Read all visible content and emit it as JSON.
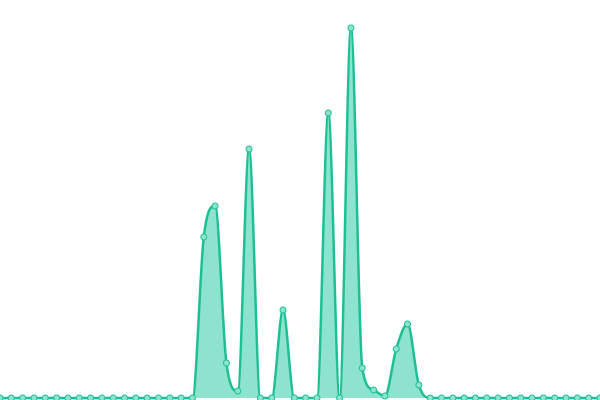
{
  "chart_data": {
    "type": "area",
    "categories": [
      null,
      null,
      null,
      null,
      null,
      null,
      null,
      null,
      null,
      null,
      null,
      null,
      null,
      null,
      null,
      null,
      null,
      null,
      null,
      null,
      null,
      null,
      null,
      null,
      null,
      null,
      null,
      null,
      null,
      null,
      null,
      null,
      null,
      null,
      null,
      null,
      null,
      null,
      null,
      null,
      null,
      null,
      null,
      null,
      null,
      null,
      null,
      null,
      null,
      null,
      null,
      null,
      null,
      null
    ],
    "values": [
      0,
      0,
      0,
      0,
      0,
      0,
      0,
      0,
      0,
      0,
      0,
      0,
      0,
      0,
      0,
      0,
      0,
      0,
      161,
      192,
      35,
      7,
      249,
      0,
      0,
      88,
      0,
      0,
      0,
      285,
      0,
      370,
      30,
      8,
      2,
      49,
      74,
      13,
      0,
      0,
      0,
      0,
      0,
      0,
      0,
      0,
      0,
      0,
      0,
      0,
      0,
      0,
      0,
      0
    ],
    "color": "#1dbf95",
    "fill": "#8de3cd",
    "ylim": [
      0,
      398
    ]
  }
}
